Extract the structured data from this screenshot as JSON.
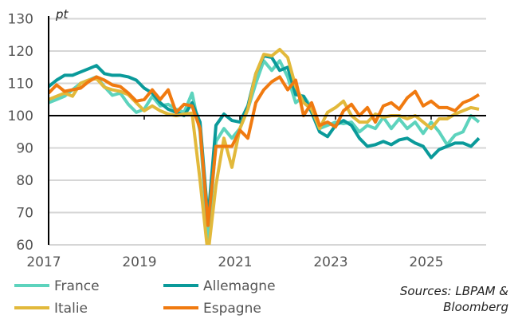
{
  "chart_data": {
    "type": "line",
    "unit_label": "pt",
    "ylim": [
      60,
      130
    ],
    "yticks": [
      60,
      70,
      80,
      90,
      100,
      110,
      120,
      130
    ],
    "xticks": [
      "2017",
      "2019",
      "2021",
      "2023",
      "2025"
    ],
    "reference_line": 100,
    "grid": true,
    "legend_position": "bottom",
    "source": "Sources: LBPAM & Bloomberg",
    "source_lines": [
      "Sources: LBPAM &",
      "Bloomberg"
    ],
    "x": [
      "2017-01",
      "2017-03",
      "2017-05",
      "2017-07",
      "2017-09",
      "2017-11",
      "2018-01",
      "2018-03",
      "2018-05",
      "2018-07",
      "2018-09",
      "2018-11",
      "2019-01",
      "2019-03",
      "2019-05",
      "2019-07",
      "2019-09",
      "2019-11",
      "2020-01",
      "2020-03",
      "2020-05",
      "2020-07",
      "2020-09",
      "2020-11",
      "2021-01",
      "2021-03",
      "2021-05",
      "2021-07",
      "2021-09",
      "2021-11",
      "2022-01",
      "2022-03",
      "2022-05",
      "2022-07",
      "2022-09",
      "2022-11",
      "2023-01",
      "2023-03",
      "2023-05",
      "2023-07",
      "2023-09",
      "2023-11",
      "2024-01",
      "2024-03",
      "2024-05",
      "2024-07",
      "2024-09",
      "2024-11",
      "2025-01",
      "2025-03",
      "2025-05",
      "2025-07",
      "2025-09",
      "2025-11",
      "2026-01"
    ],
    "series": [
      {
        "name": "France",
        "color": "#5dd3bd",
        "values": [
          104,
          105,
          106,
          108,
          110,
          111,
          112,
          109,
          106.3,
          107,
          103.5,
          101,
          102,
          106,
          103,
          103.5,
          102,
          101,
          107,
          95,
          61,
          92,
          96,
          93,
          96,
          102,
          110,
          117,
          114,
          117,
          112,
          104,
          106,
          102.5,
          96,
          97,
          98,
          97.5,
          98,
          95,
          97,
          96,
          99.5,
          96,
          99,
          96,
          98,
          94.5,
          98,
          95,
          91,
          94,
          95,
          100,
          98
        ]
      },
      {
        "name": "Allemagne",
        "color": "#0a9a9a",
        "values": [
          109,
          111,
          112.5,
          112.5,
          113.5,
          114.5,
          115.5,
          113,
          112.5,
          112.5,
          112,
          111,
          108.5,
          107,
          104,
          102,
          101,
          100,
          104,
          98,
          68,
          97,
          100.5,
          98.5,
          98,
          103,
          113,
          118.5,
          118,
          114,
          115,
          106.5,
          106,
          101,
          95,
          93.5,
          97,
          98.5,
          97,
          93,
          90.5,
          91,
          92,
          91,
          92.5,
          93,
          91.5,
          90.5,
          87,
          89.5,
          90.5,
          91.5,
          91.5,
          90.5,
          93
        ]
      },
      {
        "name": "Italie",
        "color": "#e2b93b",
        "values": [
          105,
          106,
          107,
          106,
          110,
          111,
          111.5,
          108.8,
          108,
          107.5,
          106.5,
          104,
          101.5,
          103,
          101.5,
          100.5,
          100,
          100.5,
          100.8,
          80,
          57,
          78.5,
          93,
          84,
          96,
          102,
          113,
          119,
          118.5,
          120.5,
          118,
          109,
          104,
          102,
          96,
          101,
          102.5,
          104.5,
          100,
          98,
          98,
          100.5,
          99.5,
          100,
          100,
          99,
          100,
          98,
          96,
          99,
          99,
          100.5,
          101.5,
          102.5,
          102
        ]
      },
      {
        "name": "Espagne",
        "color": "#f07a10",
        "values": [
          107,
          109.5,
          107.5,
          108,
          108.5,
          110.5,
          112,
          111,
          109.5,
          109,
          107,
          104.5,
          105,
          108,
          105,
          108,
          101,
          103.5,
          103,
          96,
          66,
          90.5,
          90.5,
          90.5,
          95.5,
          93,
          104,
          108,
          110.5,
          112,
          108,
          111,
          100,
          104,
          97,
          98,
          96.5,
          101.5,
          103.5,
          100,
          102.5,
          98,
          103,
          104,
          102,
          105.5,
          107.5,
          103,
          104.5,
          102.5,
          102.5,
          101.5,
          104,
          105,
          106.5
        ]
      }
    ]
  }
}
